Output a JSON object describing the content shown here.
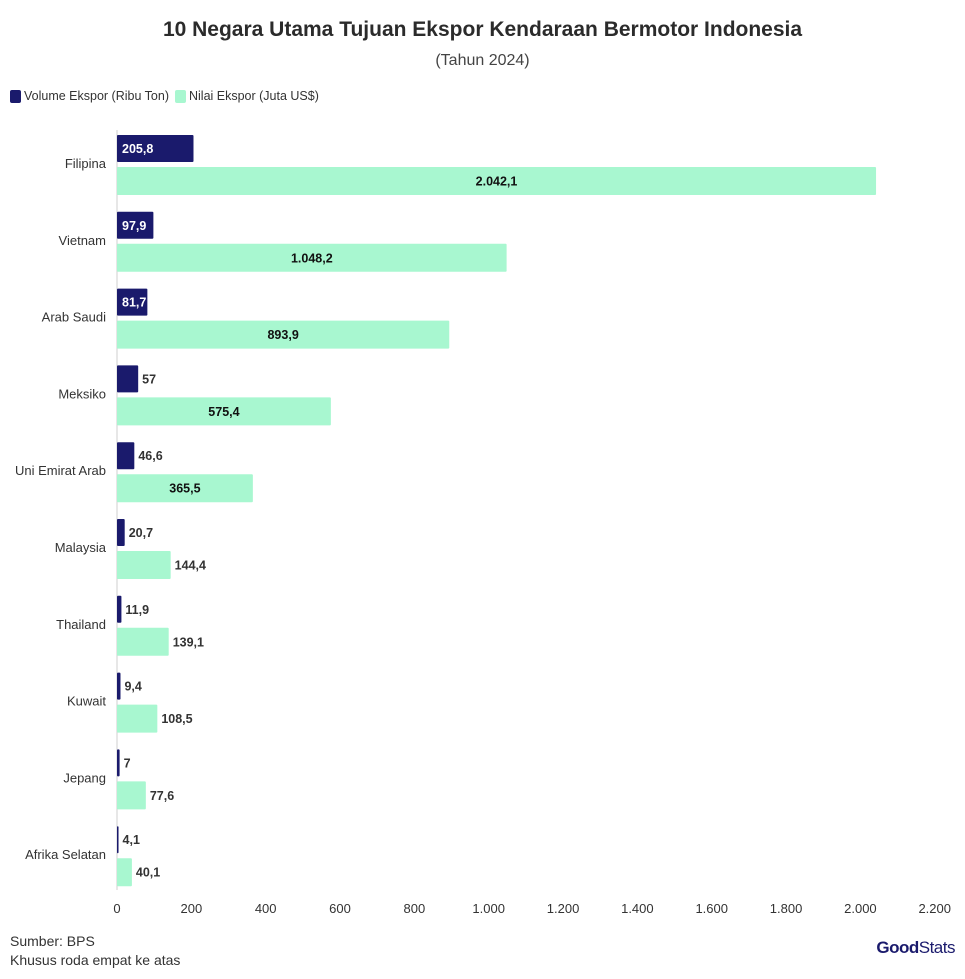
{
  "chart_data": {
    "type": "bar",
    "orientation": "horizontal",
    "title": "10 Negara Utama Tujuan Ekspor Kendaraan Bermotor Indonesia",
    "subtitle": "(Tahun 2024)",
    "categories": [
      "Filipina",
      "Vietnam",
      "Arab Saudi",
      "Meksiko",
      "Uni Emirat Arab",
      "Malaysia",
      "Thailand",
      "Kuwait",
      "Jepang",
      "Afrika Selatan"
    ],
    "series": [
      {
        "name": "Volume Ekspor (Ribu Ton)",
        "color": "#1a1a6c",
        "values": [
          205.8,
          97.9,
          81.7,
          57,
          46.6,
          20.7,
          11.9,
          9.4,
          7,
          4.1
        ],
        "labels": [
          "205,8",
          "97,9",
          "81,7",
          "57",
          "46,6",
          "20,7",
          "11,9",
          "9,4",
          "7",
          "4,1"
        ]
      },
      {
        "name": "Nilai Ekspor (Juta US$)",
        "color": "#a8f7d0",
        "values": [
          2042.1,
          1048.2,
          893.9,
          575.4,
          365.5,
          144.4,
          139.1,
          108.5,
          77.6,
          40.1
        ],
        "labels": [
          "2.042,1",
          "1.048,2",
          "893,9",
          "575,4",
          "365,5",
          "144,4",
          "139,1",
          "108,5",
          "77,6",
          "40,1"
        ]
      }
    ],
    "xlim": [
      0,
      2200
    ],
    "xticks": [
      0,
      200,
      400,
      600,
      800,
      1000,
      1200,
      1400,
      1600,
      1800,
      2000,
      2200
    ],
    "xtick_labels": [
      "0",
      "200",
      "400",
      "600",
      "800",
      "1.000",
      "1.200",
      "1.400",
      "1.600",
      "1.800",
      "2.000",
      "2.200"
    ],
    "grid": false,
    "legend_position": "top-left"
  },
  "footer": {
    "source": "Sumber: BPS",
    "note": "Khusus roda empat ke atas"
  },
  "brand": {
    "logo_bold": "Good",
    "logo_light": "Stats"
  }
}
